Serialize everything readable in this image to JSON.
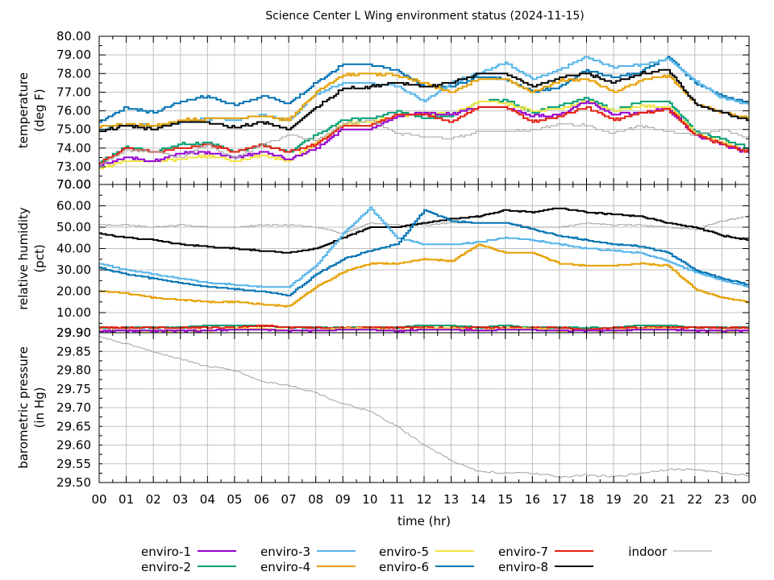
{
  "chart_data": {
    "type": "line",
    "title": "Science Center L Wing environment status (2024-11-15)",
    "xlabel": "time (hr)",
    "xlim": [
      0,
      24
    ],
    "x_tick_labels": [
      "00",
      "01",
      "02",
      "03",
      "04",
      "05",
      "06",
      "07",
      "08",
      "09",
      "10",
      "11",
      "12",
      "13",
      "14",
      "15",
      "16",
      "17",
      "18",
      "19",
      "20",
      "21",
      "22",
      "23",
      "00"
    ],
    "grid": true,
    "legend_placement": "bottom",
    "legend": [
      {
        "name": "enviro-1",
        "color": "#9400d3"
      },
      {
        "name": "enviro-2",
        "color": "#009e73"
      },
      {
        "name": "enviro-3",
        "color": "#56b4e9"
      },
      {
        "name": "enviro-4",
        "color": "#e69f00"
      },
      {
        "name": "enviro-5",
        "color": "#f0e442"
      },
      {
        "name": "enviro-6",
        "color": "#0072b2"
      },
      {
        "name": "enviro-7",
        "color": "#e51e10"
      },
      {
        "name": "enviro-8",
        "color": "#000000"
      },
      {
        "name": "indoor",
        "color": "#a0a0a0"
      }
    ],
    "x": [
      0,
      1,
      2,
      3,
      4,
      5,
      6,
      7,
      8,
      9,
      10,
      11,
      12,
      13,
      14,
      15,
      16,
      17,
      18,
      19,
      20,
      21,
      22,
      23,
      24
    ],
    "panels": [
      {
        "id": "temperature",
        "ylabel": [
          "temperature",
          "(deg F)"
        ],
        "ylim": [
          72.05,
          80
        ],
        "y_ticks": [
          80,
          79,
          78,
          77,
          76,
          75,
          74,
          73
        ],
        "y_tick_labels": [
          "80.00",
          "79.00",
          "78.00",
          "77.00",
          "76.00",
          "75.00",
          "74.00",
          "73.00"
        ],
        "bottom_label_overlap": "70.00",
        "series": [
          {
            "name": "enviro-6",
            "values": [
              75.4,
              76.2,
              75.9,
              76.5,
              76.8,
              76.3,
              76.8,
              76.4,
              77.5,
              78.5,
              78.5,
              78.2,
              77.3,
              77.3,
              77.8,
              77.7,
              77.0,
              77.3,
              78.2,
              77.8,
              78.1,
              78.9,
              77.5,
              76.8,
              76.4
            ]
          },
          {
            "name": "enviro-3",
            "values": [
              75.0,
              75.3,
              75.2,
              75.4,
              75.6,
              75.5,
              75.8,
              75.5,
              76.9,
              77.5,
              77.5,
              77.3,
              76.5,
              77.5,
              78.0,
              78.6,
              77.7,
              78.2,
              78.9,
              78.3,
              78.5,
              78.8,
              77.6,
              76.7,
              76.3
            ]
          },
          {
            "name": "enviro-4",
            "values": [
              75.1,
              75.3,
              75.2,
              75.5,
              75.6,
              75.6,
              75.7,
              75.5,
              77.0,
              77.9,
              78.0,
              77.9,
              77.5,
              77.0,
              77.7,
              77.7,
              77.0,
              77.6,
              77.7,
              77.0,
              77.6,
              77.9,
              76.4,
              75.9,
              75.6
            ]
          },
          {
            "name": "enviro-8",
            "values": [
              74.9,
              75.2,
              75.0,
              75.4,
              75.4,
              75.1,
              75.4,
              75.0,
              76.2,
              77.2,
              77.3,
              77.5,
              77.3,
              77.5,
              78.0,
              78.0,
              77.3,
              77.8,
              78.0,
              77.5,
              78.0,
              78.2,
              76.4,
              75.9,
              75.5
            ]
          },
          {
            "name": "enviro-2",
            "values": [
              73.2,
              74.1,
              73.8,
              74.2,
              74.3,
              73.8,
              74.2,
              73.8,
              74.7,
              75.5,
              75.6,
              76.0,
              75.6,
              75.7,
              76.5,
              76.6,
              75.9,
              76.3,
              76.7,
              76.0,
              76.5,
              76.5,
              74.9,
              74.5,
              74.0
            ]
          },
          {
            "name": "enviro-5",
            "values": [
              72.9,
              73.3,
              73.3,
              73.4,
              73.6,
              73.3,
              73.6,
              73.3,
              74.3,
              75.3,
              75.4,
              75.7,
              75.9,
              75.8,
              76.5,
              76.4,
              76.0,
              76.1,
              76.5,
              76.0,
              76.3,
              76.2,
              74.8,
              74.3,
              73.8
            ]
          },
          {
            "name": "enviro-1",
            "values": [
              73.1,
              73.5,
              73.3,
              73.7,
              73.8,
              73.5,
              73.8,
              73.4,
              74.0,
              75.0,
              75.0,
              75.7,
              75.9,
              75.8,
              76.2,
              76.2,
              75.7,
              75.8,
              76.5,
              75.8,
              75.9,
              76.1,
              74.7,
              74.2,
              73.7
            ]
          },
          {
            "name": "enviro-7",
            "values": [
              73.2,
              74.0,
              73.8,
              74.0,
              74.2,
              73.8,
              74.2,
              73.8,
              74.2,
              75.2,
              75.2,
              75.8,
              75.8,
              75.4,
              76.2,
              76.2,
              75.4,
              75.7,
              76.2,
              75.5,
              75.9,
              76.1,
              74.7,
              74.2,
              73.8
            ]
          },
          {
            "name": "indoor",
            "values": [
              73.1,
              73.9,
              73.8,
              73.5,
              74.2,
              73.4,
              74.2,
              74.7,
              74.4,
              75.3,
              75.5,
              74.8,
              74.6,
              74.5,
              74.9,
              74.9,
              75.0,
              75.3,
              75.2,
              74.8,
              75.2,
              74.9,
              74.7,
              75.0,
              74.5
            ]
          }
        ]
      },
      {
        "id": "humidity",
        "ylabel": [
          "relative humidity",
          "(pct)"
        ],
        "ylim": [
          0.6,
          70
        ],
        "y_ticks": [
          70,
          60,
          50,
          40,
          30,
          20,
          10
        ],
        "y_tick_labels": [
          "70.00",
          "60.00",
          "50.00",
          "40.00",
          "30.00",
          "20.00",
          "10.00"
        ],
        "bottom_label_overlap": "29.90",
        "series": [
          {
            "name": "indoor",
            "values": [
              51,
              51,
              50,
              51,
              50,
              50,
              51,
              51,
              50,
              47,
              52,
              51,
              51,
              52,
              52,
              52,
              50,
              50,
              52,
              51,
              51,
              50,
              49,
              53,
              55
            ]
          },
          {
            "name": "enviro-8",
            "values": [
              47,
              45,
              44,
              42,
              41,
              40,
              39,
              38,
              40,
              45,
              50,
              50,
              52,
              54,
              55,
              58,
              57,
              59,
              57,
              56,
              55,
              52,
              50,
              46,
              44
            ]
          },
          {
            "name": "enviro-3",
            "values": [
              33,
              30,
              28,
              26,
              24,
              23,
              22,
              22,
              32,
              47,
              59,
              45,
              42,
              42,
              43,
              45,
              44,
              42,
              40,
              39,
              38,
              34,
              29,
              25,
              22
            ]
          },
          {
            "name": "enviro-6",
            "values": [
              31,
              28,
              26,
              24,
              22,
              21,
              20,
              18,
              28,
              35,
              39,
              42,
              58,
              53,
              52,
              52,
              49,
              46,
              44,
              42,
              41,
              38,
              30,
              26,
              23
            ]
          },
          {
            "name": "enviro-4",
            "values": [
              20,
              19,
              17,
              16,
              15,
              15,
              14,
              13,
              22,
              29,
              33,
              33,
              35,
              34,
              42,
              38,
              38,
              33,
              32,
              32,
              33,
              32,
              21,
              17,
              15
            ]
          },
          {
            "name": "enviro-2",
            "values": [
              3,
              3,
              3,
              3,
              4,
              4,
              4,
              3,
              3,
              3,
              3,
              3,
              4,
              4,
              3,
              4,
              3,
              3,
              3,
              3,
              4,
              4,
              3,
              3,
              3
            ]
          },
          {
            "name": "enviro-7",
            "values": [
              3,
              3,
              3,
              3,
              3,
              3,
              4,
              3,
              3,
              3,
              3,
              3,
              3,
              3,
              3,
              3,
              3,
              3,
              2,
              3,
              3,
              3,
              3,
              3,
              3
            ]
          },
          {
            "name": "enviro-5",
            "values": [
              1.5,
              1.5,
              1.5,
              1.5,
              1.5,
              2.5,
              2.5,
              1.5,
              1.5,
              2.5,
              2.5,
              1.5,
              2.5,
              2.5,
              1.5,
              2.5,
              2.5,
              1.5,
              1.5,
              1.5,
              2.5,
              2.5,
              1.5,
              1.5,
              1.5
            ]
          },
          {
            "name": "enviro-1",
            "values": [
              1.5,
              1.5,
              1.5,
              1.5,
              1.5,
              2,
              2,
              1.5,
              1.5,
              2,
              2,
              1.5,
              2,
              2,
              1.5,
              2,
              2,
              1.5,
              1.5,
              1.5,
              2,
              2,
              1.5,
              1.5,
              1.5
            ]
          }
        ]
      },
      {
        "id": "pressure",
        "ylabel": [
          "barometric pressure",
          "(in Hg)"
        ],
        "ylim": [
          29.5,
          29.9
        ],
        "y_ticks": [
          29.9,
          29.85,
          29.8,
          29.75,
          29.7,
          29.65,
          29.6,
          29.55,
          29.5
        ],
        "y_tick_labels": [
          "29.90",
          "29.85",
          "29.80",
          "29.75",
          "29.70",
          "29.65",
          "29.60",
          "29.55",
          "29.50"
        ],
        "series": [
          {
            "name": "indoor",
            "values": [
              29.89,
              29.87,
              29.85,
              29.83,
              29.81,
              29.8,
              29.77,
              29.76,
              29.74,
              29.71,
              29.69,
              29.65,
              29.6,
              29.56,
              29.53,
              29.525,
              29.525,
              29.515,
              29.52,
              29.515,
              29.525,
              29.535,
              29.535,
              29.525,
              29.52
            ]
          }
        ]
      }
    ]
  }
}
